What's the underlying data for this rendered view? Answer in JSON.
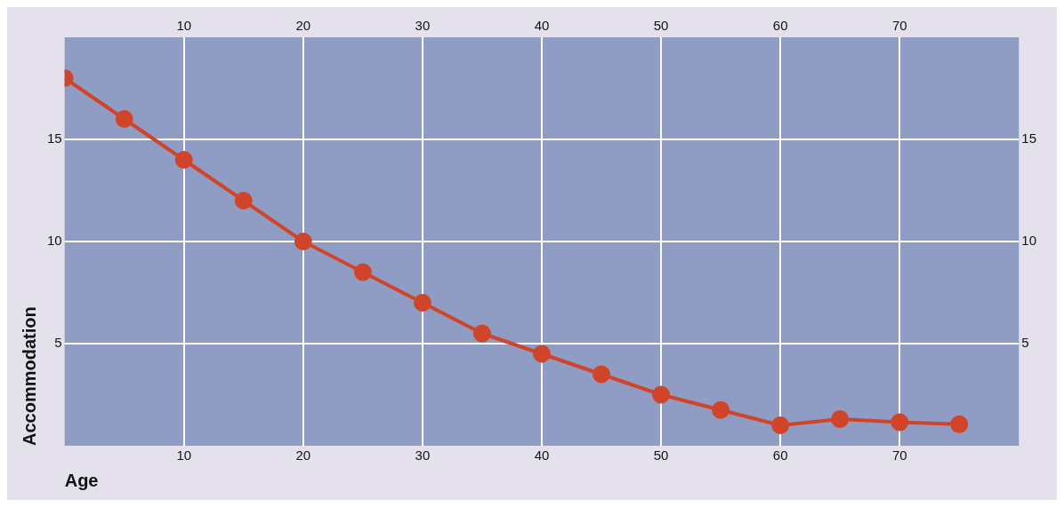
{
  "chart_data": {
    "type": "line",
    "xlabel": "Age",
    "ylabel": "Accommodation",
    "x": [
      0,
      5,
      10,
      15,
      20,
      25,
      30,
      35,
      40,
      45,
      50,
      55,
      60,
      65,
      70,
      75
    ],
    "series": [
      {
        "color": "#d0452a",
        "values": [
          18,
          16,
          14,
          12,
          10,
          8.5,
          7,
          5.5,
          4.5,
          3.5,
          2.5,
          1.75,
          1,
          1.3,
          1.15,
          1.05
        ]
      }
    ],
    "xlim": [
      0,
      80
    ],
    "xticks": [
      10,
      20,
      30,
      40,
      50,
      60,
      70
    ],
    "x2lim": [
      0,
      80
    ],
    "x2ticks": [
      10,
      20,
      30,
      40,
      50,
      60,
      70
    ],
    "ylim": [
      0,
      20
    ],
    "yticks": [
      5,
      10,
      15
    ],
    "y2lim": [
      0,
      20
    ],
    "y2ticks": [
      5,
      10,
      15
    ],
    "grid": true,
    "marker": "circle",
    "line_style": "solid",
    "legend": false
  }
}
